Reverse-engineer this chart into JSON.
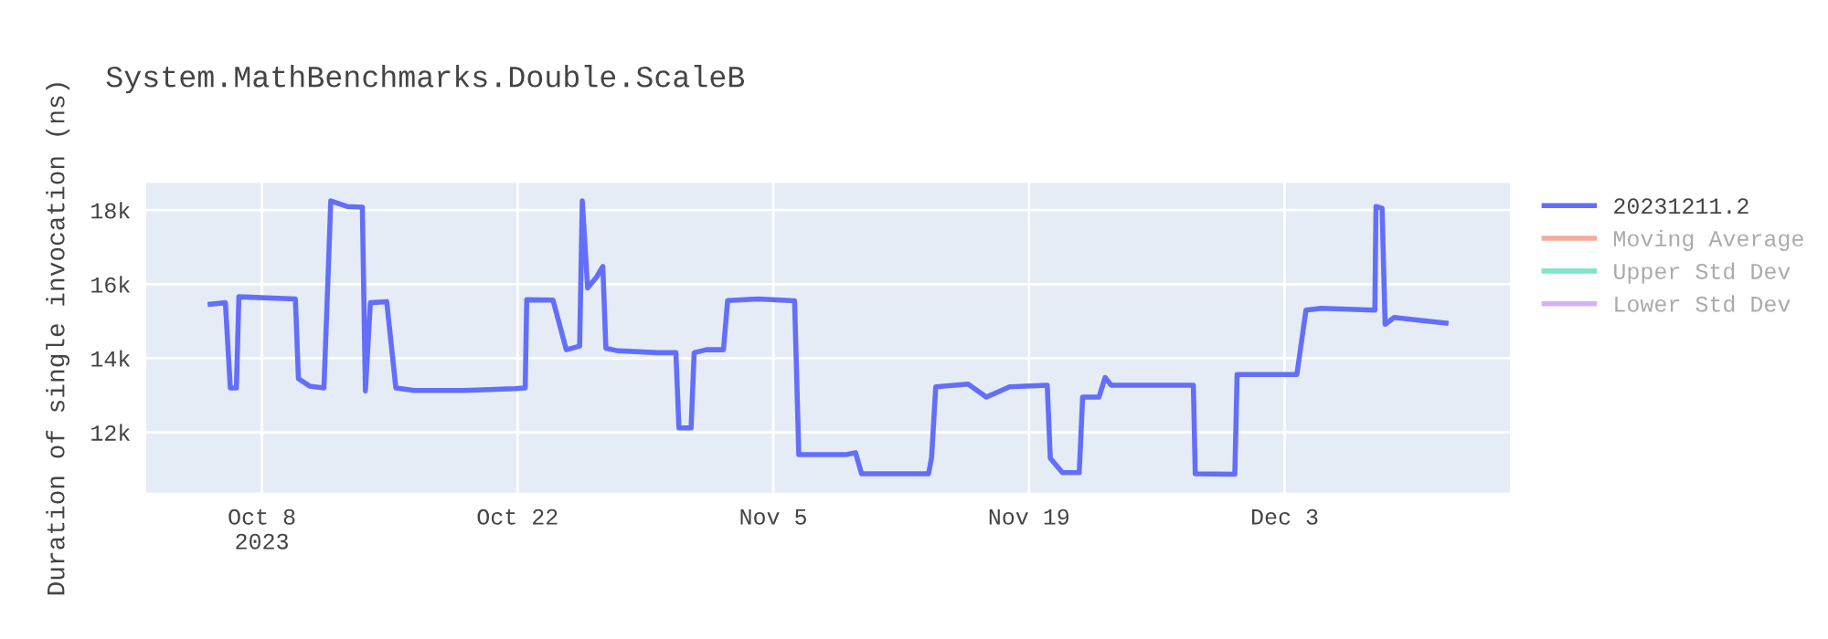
{
  "chart_data": {
    "type": "line",
    "title": "System.MathBenchmarks.Double.ScaleB",
    "ylabel": "Duration of single invocation (ns)",
    "x": [
      "2023-10-05T04:00",
      "2023-10-06T00:00",
      "2023-10-06T06:30",
      "2023-10-06T14:30",
      "2023-10-06T17:45",
      "2023-10-09T20:00",
      "2023-10-10T00:00",
      "2023-10-10T14:30",
      "2023-10-11T09:30",
      "2023-10-11T13:40",
      "2023-10-11T18:30",
      "2023-10-12T16:00",
      "2023-10-13T12:00",
      "2023-10-13T16:00",
      "2023-10-13T22:30",
      "2023-10-14T20:00",
      "2023-10-15T08:00",
      "2023-10-16T08:00",
      "2023-10-19T00:00",
      "2023-10-21T20:00",
      "2023-10-22T10:00",
      "2023-10-22T12:00",
      "2023-10-23T22:30",
      "2023-10-24T16:00",
      "2023-10-25T09:30",
      "2023-10-25T13:00",
      "2023-10-25T20:00",
      "2023-10-26T08:00",
      "2023-10-26T16:00",
      "2023-10-26T20:00",
      "2023-10-27T12:00",
      "2023-10-29T16:00",
      "2023-10-30T16:00",
      "2023-10-30T20:00",
      "2023-10-31T12:00",
      "2023-10-31T16:00",
      "2023-11-01T08:00",
      "2023-11-02T06:30",
      "2023-11-02T12:00",
      "2023-11-04T04:00",
      "2023-11-06T04:00",
      "2023-11-06T09:30",
      "2023-11-09T00:00",
      "2023-11-09T12:00",
      "2023-11-09T20:00",
      "2023-11-13T12:00",
      "2023-11-13T16:00",
      "2023-11-13T21:30",
      "2023-11-15T16:00",
      "2023-11-16T16:00",
      "2023-11-17T22:30",
      "2023-11-20T00:00",
      "2023-11-20T04:00",
      "2023-11-20T20:00",
      "2023-11-21T18:00",
      "2023-11-21T22:30",
      "2023-11-22T20:00",
      "2023-11-23T04:00",
      "2023-11-23T12:00",
      "2023-11-28T00:00",
      "2023-11-28T02:30",
      "2023-11-30T06:30",
      "2023-11-30T09:30",
      "2023-12-03T16:00",
      "2023-12-04T04:00",
      "2023-12-05T00:00",
      "2023-12-07T22:30",
      "2023-12-08T00:00",
      "2023-12-08T08:00",
      "2023-12-08T12:00",
      "2023-12-09T00:00",
      "2023-12-10T08:00",
      "2023-12-11T20:00"
    ],
    "series": [
      {
        "name": "20231211.2",
        "color": "#636efa",
        "values": [
          15460,
          15500,
          13200,
          13200,
          15660,
          15600,
          13450,
          13250,
          13200,
          15500,
          18250,
          18100,
          18080,
          13120,
          15500,
          15530,
          13200,
          13130,
          13130,
          13180,
          13200,
          15580,
          15570,
          14230,
          14330,
          18250,
          15900,
          16200,
          16480,
          14270,
          14200,
          14150,
          14150,
          12120,
          12120,
          14150,
          14230,
          14230,
          15560,
          15600,
          15550,
          11400,
          11400,
          11450,
          10880,
          10880,
          11320,
          13230,
          13300,
          12950,
          13230,
          13270,
          11300,
          10910,
          10910,
          12950,
          12950,
          13480,
          13270,
          13270,
          10880,
          10870,
          13560,
          13560,
          15300,
          15350,
          15300,
          18100,
          18050,
          14920,
          15100,
          15030,
          14950
        ]
      },
      {
        "name": "Moving Average",
        "color": "#ef553b",
        "values": [
          null,
          null,
          null,
          null,
          null,
          null,
          null,
          null,
          null,
          null,
          null,
          null,
          null,
          null,
          null,
          null,
          null,
          null,
          null,
          null,
          null,
          null,
          null,
          null,
          null,
          null,
          null,
          null,
          null,
          null,
          null,
          null,
          null,
          null,
          null,
          null,
          null,
          null,
          null,
          null,
          null,
          null,
          null,
          null,
          null,
          null,
          null,
          null,
          null,
          null,
          null,
          null,
          null,
          null,
          null,
          null,
          null,
          null,
          null,
          null,
          null,
          null,
          null,
          null,
          null,
          null,
          null,
          null,
          null,
          null,
          null,
          null,
          null
        ]
      },
      {
        "name": "Upper Std Dev",
        "color": "#00cc96",
        "values": [
          null,
          null,
          null,
          null,
          null,
          null,
          null,
          null,
          null,
          null,
          null,
          null,
          null,
          null,
          null,
          null,
          null,
          null,
          null,
          null,
          null,
          null,
          null,
          null,
          null,
          null,
          null,
          null,
          null,
          null,
          null,
          null,
          null,
          null,
          null,
          null,
          null,
          null,
          null,
          null,
          null,
          null,
          null,
          null,
          null,
          null,
          null,
          null,
          null,
          null,
          null,
          null,
          null,
          null,
          null,
          null,
          null,
          null,
          null,
          null,
          null,
          null,
          null,
          null,
          null,
          null,
          null,
          null,
          null,
          null,
          null,
          null,
          null
        ]
      },
      {
        "name": "Lower Std Dev",
        "color": "#ab63fa",
        "values": [
          null,
          null,
          null,
          null,
          null,
          null,
          null,
          null,
          null,
          null,
          null,
          null,
          null,
          null,
          null,
          null,
          null,
          null,
          null,
          null,
          null,
          null,
          null,
          null,
          null,
          null,
          null,
          null,
          null,
          null,
          null,
          null,
          null,
          null,
          null,
          null,
          null,
          null,
          null,
          null,
          null,
          null,
          null,
          null,
          null,
          null,
          null,
          null,
          null,
          null,
          null,
          null,
          null,
          null,
          null,
          null,
          null,
          null,
          null,
          null,
          null,
          null,
          null,
          null,
          null,
          null,
          null,
          null,
          null,
          null,
          null,
          null,
          null
        ]
      }
    ],
    "xlim": [
      "2023-10-01T16:00",
      "2023-12-15T08:00"
    ],
    "xticks": [
      {
        "value": "2023-10-08",
        "label": "Oct 8\n2023"
      },
      {
        "value": "2023-10-22",
        "label": "Oct 22"
      },
      {
        "value": "2023-11-05",
        "label": "Nov 5"
      },
      {
        "value": "2023-11-19",
        "label": "Nov 19"
      },
      {
        "value": "2023-12-03",
        "label": "Dec 3"
      }
    ],
    "ylim": [
      10370,
      18740
    ],
    "yticks": [
      {
        "value": 12000,
        "label": "12k"
      },
      {
        "value": 14000,
        "label": "14k"
      },
      {
        "value": 16000,
        "label": "16k"
      },
      {
        "value": 18000,
        "label": "18k"
      }
    ],
    "grid": true,
    "legend": "right",
    "marker": "none",
    "line_style": "solid"
  }
}
